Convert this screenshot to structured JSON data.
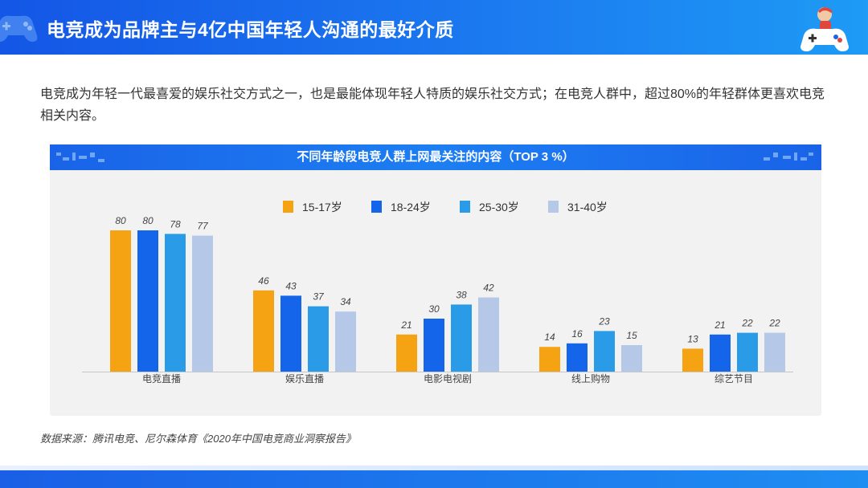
{
  "header": {
    "title": "电竞成为品牌主与4亿中国年轻人沟通的最好介质"
  },
  "intro": "电竞成为年轻一代最喜爱的娱乐社交方式之一，也是最能体现年轻人特质的娱乐社交方式；在电竞人群中，超过80%的年轻群体更喜欢电竞相关内容。",
  "source": "数据来源：腾讯电竞、尼尔森体育《2020年中国电竞商业洞察报告》",
  "colors": {
    "primary": "#1a63e8",
    "accent": "#1d9bf5"
  },
  "chart_data": {
    "type": "bar",
    "title": "不同年龄段电竞人群上网最关注的内容（TOP 3 %）",
    "categories": [
      "电竞直播",
      "娱乐直播",
      "电影电视剧",
      "线上购物",
      "综艺节目"
    ],
    "series": [
      {
        "name": "15-17岁",
        "color": "#f6a313",
        "values": [
          80,
          46,
          21,
          14,
          13
        ]
      },
      {
        "name": "18-24岁",
        "color": "#1565ea",
        "values": [
          80,
          43,
          30,
          16,
          21
        ]
      },
      {
        "name": "25-30岁",
        "color": "#2a9be6",
        "values": [
          78,
          37,
          38,
          23,
          22
        ]
      },
      {
        "name": "31-40岁",
        "color": "#b5c8e8",
        "values": [
          77,
          34,
          42,
          15,
          22
        ]
      }
    ],
    "xlabel": "",
    "ylabel": "",
    "ylim": [
      0,
      100
    ],
    "legend": "top-center",
    "grid": false
  }
}
